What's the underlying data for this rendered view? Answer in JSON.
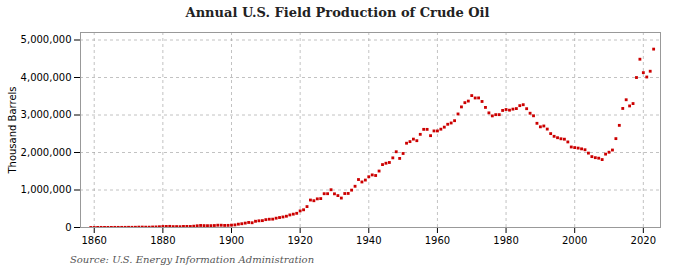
{
  "chart_data": {
    "type": "scatter",
    "title": "Annual U.S. Field Production of Crude Oil",
    "ylabel": "Thousand Barrels",
    "caption": "Source: U.S. Energy Information Administration",
    "color": "#cc0000",
    "marker": "square",
    "grid": true,
    "xlim": [
      1856,
      2025
    ],
    "ylim": [
      0,
      5200000
    ],
    "xticks": [
      1860,
      1880,
      1900,
      1920,
      1940,
      1960,
      1980,
      2000,
      2020
    ],
    "yticks": [
      0,
      {
        "value": 1000000,
        "label": "1,000,000"
      },
      {
        "value": 2000000,
        "label": "2,000,000"
      },
      {
        "value": 3000000,
        "label": "3,000,000"
      },
      {
        "value": 4000000,
        "label": "4,000,000"
      },
      {
        "value": 5000000,
        "label": "5,000,000"
      }
    ],
    "x": [
      1859,
      1860,
      1861,
      1862,
      1863,
      1864,
      1865,
      1866,
      1867,
      1868,
      1869,
      1870,
      1871,
      1872,
      1873,
      1874,
      1875,
      1876,
      1877,
      1878,
      1879,
      1880,
      1881,
      1882,
      1883,
      1884,
      1885,
      1886,
      1887,
      1888,
      1889,
      1890,
      1891,
      1892,
      1893,
      1894,
      1895,
      1896,
      1897,
      1898,
      1899,
      1900,
      1901,
      1902,
      1903,
      1904,
      1905,
      1906,
      1907,
      1908,
      1909,
      1910,
      1911,
      1912,
      1913,
      1914,
      1915,
      1916,
      1917,
      1918,
      1919,
      1920,
      1921,
      1922,
      1923,
      1924,
      1925,
      1926,
      1927,
      1928,
      1929,
      1930,
      1931,
      1932,
      1933,
      1934,
      1935,
      1936,
      1937,
      1938,
      1939,
      1940,
      1941,
      1942,
      1943,
      1944,
      1945,
      1946,
      1947,
      1948,
      1949,
      1950,
      1951,
      1952,
      1953,
      1954,
      1955,
      1956,
      1957,
      1958,
      1959,
      1960,
      1961,
      1962,
      1963,
      1964,
      1965,
      1966,
      1967,
      1968,
      1969,
      1970,
      1971,
      1972,
      1973,
      1974,
      1975,
      1976,
      1977,
      1978,
      1979,
      1980,
      1981,
      1982,
      1983,
      1984,
      1985,
      1986,
      1987,
      1988,
      1989,
      1990,
      1991,
      1992,
      1993,
      1994,
      1995,
      1996,
      1997,
      1998,
      1999,
      2000,
      2001,
      2002,
      2003,
      2004,
      2005,
      2006,
      2007,
      2008,
      2009,
      2010,
      2011,
      2012,
      2013,
      2014,
      2015,
      2016,
      2017,
      2018,
      2019,
      2020,
      2021,
      2022,
      2023
    ],
    "values": [
      2,
      500,
      2114,
      3057,
      2611,
      2116,
      2498,
      3597,
      3347,
      3646,
      4215,
      5261,
      5205,
      6293,
      9894,
      10927,
      8788,
      9133,
      13350,
      15397,
      19914,
      26286,
      27661,
      30350,
      23450,
      24218,
      21858,
      28065,
      28283,
      27612,
      35164,
      45824,
      54293,
      50515,
      48431,
      49344,
      52892,
      60960,
      60476,
      55364,
      57071,
      63621,
      69389,
      88767,
      100461,
      117081,
      134717,
      126494,
      166095,
      178527,
      183171,
      209557,
      220449,
      222935,
      248446,
      265762,
      281104,
      300767,
      335316,
      355928,
      378367,
      442929,
      472183,
      557531,
      732407,
      713940,
      763743,
      770874,
      901129,
      901474,
      1007323,
      898011,
      851081,
      785159,
      905654,
      908064,
      996596,
      1099671,
      1279160,
      1214355,
      1264962,
      1353214,
      1402228,
      1386645,
      1505613,
      1677904,
      1713655,
      1733617,
      1856987,
      2020185,
      1841940,
      1973574,
      2247711,
      2290149,
      2357082,
      2314988,
      2484428,
      2617283,
      2616901,
      2448987,
      2574960,
      2574993,
      2621758,
      2676189,
      2752723,
      2786822,
      2848514,
      3027763,
      3215742,
      3329042,
      3371597,
      3517450,
      3453914,
      3455368,
      3360903,
      3202585,
      3056780,
      2976180,
      3009319,
      3009319,
      3121310,
      3146365,
      3128624,
      3156715,
      3170999,
      3249696,
      3274553,
      3168247,
      3047379,
      2979123,
      2778473,
      2684687,
      2707039,
      2624632,
      2503437,
      2431476,
      2394268,
      2366010,
      2354919,
      2281921,
      2147114,
      2130707,
      2117463,
      2097183,
      2073453,
      1983302,
      1890106,
      1862259,
      1848450,
      1811817,
      1956596,
      2007613,
      2065928,
      2370003,
      2723874,
      3174776,
      3406674,
      3241439,
      3305107,
      3999362,
      4487480,
      4129511,
      4013000,
      4167000,
      4757000
    ]
  }
}
